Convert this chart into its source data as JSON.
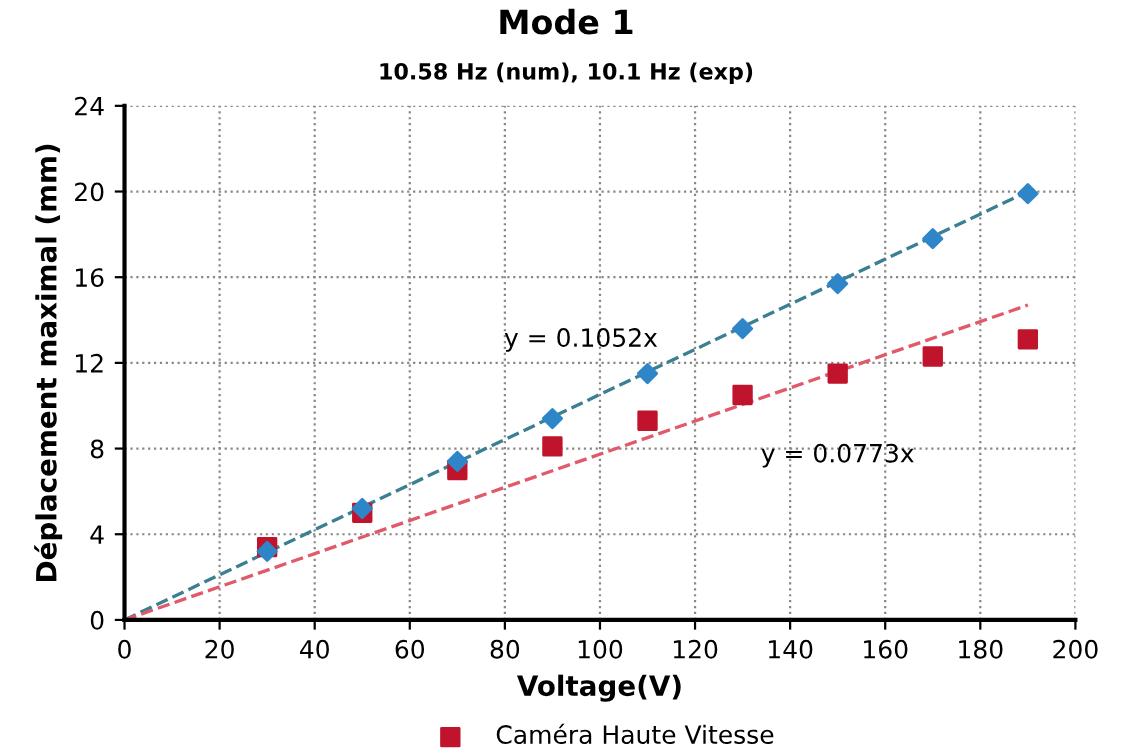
{
  "chart_data": {
    "type": "scatter",
    "title": "Mode 1",
    "subtitle": "10.58 Hz (num), 10.1 Hz (exp)",
    "xlabel": "Voltage(V)",
    "ylabel": "Déplacement maximal (mm)",
    "xlim": [
      0,
      200
    ],
    "xticks": [
      0,
      20,
      40,
      60,
      80,
      100,
      120,
      140,
      160,
      180,
      200
    ],
    "ylim": [
      0,
      24
    ],
    "yticks": [
      0,
      4,
      8,
      12,
      16,
      20,
      24
    ],
    "grid": true,
    "legend": "bottom",
    "series": [
      {
        "type": "line",
        "color": "#3a8090",
        "line_style": "dashed",
        "marker": "none",
        "x": [
          0,
          190
        ],
        "values": [
          0,
          20.0
        ]
      },
      {
        "type": "line",
        "color": "#e05a6a",
        "line_style": "dashed",
        "marker": "none",
        "x": [
          0,
          190
        ],
        "values": [
          0,
          14.7
        ]
      },
      {
        "color": "#2e86c8",
        "marker": "diamond",
        "x": [
          30,
          50,
          70,
          90,
          110,
          130,
          150,
          170,
          190
        ],
        "values": [
          3.2,
          5.2,
          7.4,
          9.4,
          11.5,
          13.6,
          15.7,
          17.8,
          19.9
        ]
      },
      {
        "name": "Caméra Haute Vitesse",
        "color": "#c0142c",
        "marker": "square",
        "x": [
          30,
          50,
          70,
          90,
          110,
          130,
          150,
          170,
          190
        ],
        "values": [
          3.4,
          5.0,
          7.0,
          8.1,
          9.3,
          10.5,
          11.5,
          12.3,
          13.1
        ]
      }
    ],
    "annotations": [
      "y = 0.1052x",
      "y = 0.0773x"
    ]
  }
}
